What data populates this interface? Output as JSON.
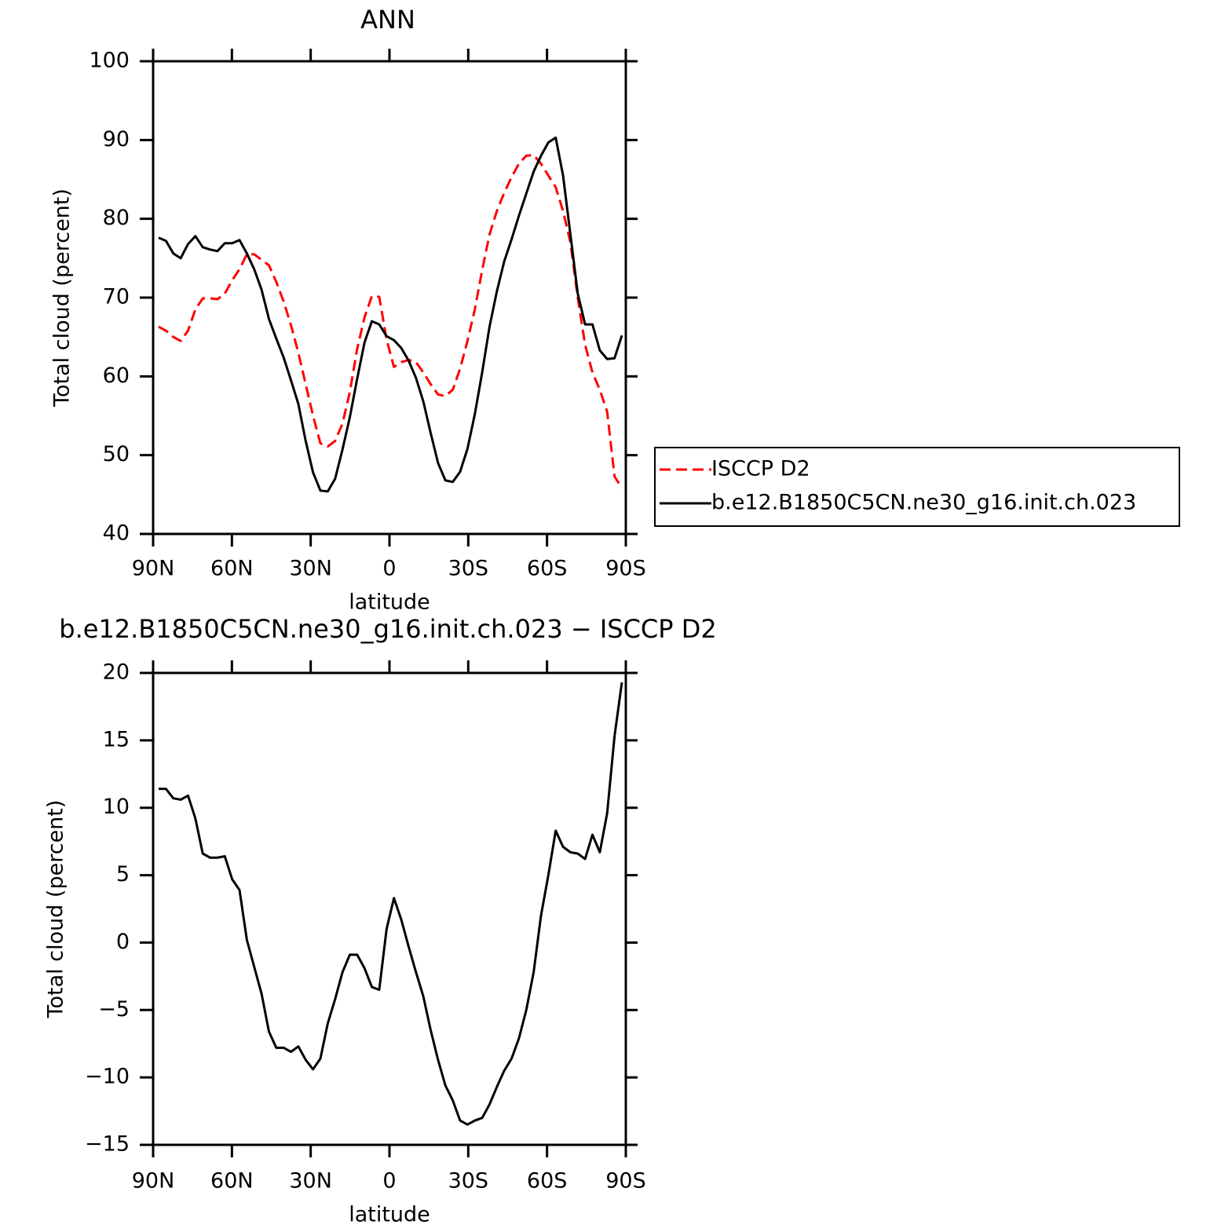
{
  "chart_data": [
    {
      "type": "line",
      "title": "ANN",
      "xlabel": "latitude",
      "ylabel": "Total cloud (percent)",
      "x": [
        87.9,
        85.1,
        82.3,
        79.5,
        76.7,
        73.9,
        71.1,
        68.3,
        65.5,
        62.7,
        59.9,
        57.1,
        54.3,
        51.5,
        48.7,
        45.9,
        43.1,
        40.3,
        37.5,
        34.7,
        31.9,
        29.1,
        26.3,
        23.5,
        20.7,
        17.9,
        15.1,
        12.3,
        9.5,
        6.7,
        3.9,
        1.1,
        -1.7,
        -4.5,
        -7.3,
        -10.1,
        -12.9,
        -15.7,
        -18.5,
        -21.3,
        -24.1,
        -26.9,
        -29.7,
        -32.5,
        -35.3,
        -38.1,
        -40.9,
        -43.7,
        -46.5,
        -49.3,
        -52.1,
        -54.9,
        -57.7,
        -60.5,
        -63.3,
        -66.1,
        -68.9,
        -71.7,
        -74.5,
        -77.3,
        -80.1,
        -82.9,
        -85.7,
        -88.5
      ],
      "series": [
        {
          "name": "ISCCP D2",
          "color": "#ff0000",
          "style": "dashed",
          "values": [
            66.3,
            65.8,
            65.0,
            64.5,
            65.8,
            68.5,
            69.9,
            69.9,
            69.8,
            70.5,
            72.2,
            73.6,
            75.5,
            75.5,
            74.8,
            74.1,
            72.0,
            69.5,
            66.5,
            63.0,
            59.0,
            55.0,
            51.5,
            51.1,
            51.8,
            54.0,
            58.0,
            63.5,
            67.5,
            70.2,
            70.1,
            64.7,
            61.2,
            61.8,
            62.1,
            61.8,
            60.5,
            59.0,
            57.7,
            57.5,
            58.3,
            61.0,
            64.5,
            68.5,
            73.5,
            78.0,
            81.0,
            83.3,
            85.3,
            87.0,
            88.0,
            88.1,
            87.0,
            85.5,
            84.0,
            81.0,
            77.0,
            70.0,
            64.0,
            60.5,
            58.3,
            55.5,
            47.3,
            45.8
          ]
        },
        {
          "name": "b.e12.B1850C5CN.ne30_g16.init.ch.023",
          "color": "#000000",
          "style": "solid",
          "values": [
            77.6,
            77.2,
            75.6,
            75.0,
            76.8,
            77.8,
            76.4,
            76.1,
            75.9,
            76.9,
            76.9,
            77.3,
            75.6,
            73.6,
            71.0,
            67.3,
            64.8,
            62.4,
            59.5,
            56.5,
            51.8,
            47.8,
            45.5,
            45.4,
            47.0,
            50.7,
            54.8,
            59.7,
            64.3,
            67.0,
            66.6,
            65.1,
            64.6,
            63.6,
            62.0,
            59.8,
            56.8,
            52.8,
            49.0,
            46.8,
            46.6,
            47.9,
            50.8,
            55.2,
            60.5,
            66.3,
            70.8,
            74.6,
            77.4,
            80.4,
            83.2,
            86.0,
            88.0,
            89.7,
            90.3,
            85.5,
            78.0,
            70.5,
            66.6,
            66.6,
            63.3,
            62.2,
            62.3,
            65.2
          ]
        }
      ],
      "xlim": [
        90,
        -90
      ],
      "ylim": [
        40,
        100
      ],
      "xticks": [
        {
          "value": 90,
          "label": "90N"
        },
        {
          "value": 60,
          "label": "60N"
        },
        {
          "value": 30,
          "label": "30N"
        },
        0,
        {
          "value": -30,
          "label": "30S"
        },
        {
          "value": -60,
          "label": "60S"
        },
        {
          "value": -90,
          "label": "90S"
        }
      ],
      "yticks": [
        40,
        50,
        60,
        70,
        80,
        90,
        100
      ],
      "legend": "outside-right"
    },
    {
      "type": "line",
      "title": "b.e12.B1850C5CN.ne30_g16.init.ch.023 − ISCCP D2",
      "xlabel": "latitude",
      "ylabel": "Total cloud (percent)",
      "x": [
        87.9,
        85.1,
        82.3,
        79.5,
        76.7,
        73.9,
        71.1,
        68.3,
        65.5,
        62.7,
        59.9,
        57.1,
        54.3,
        51.5,
        48.7,
        45.9,
        43.1,
        40.3,
        37.5,
        34.7,
        31.9,
        29.1,
        26.3,
        23.5,
        20.7,
        17.9,
        15.1,
        12.3,
        9.5,
        6.7,
        3.9,
        1.1,
        -1.7,
        -4.5,
        -7.3,
        -10.1,
        -12.9,
        -15.7,
        -18.5,
        -21.3,
        -24.1,
        -26.9,
        -29.7,
        -32.5,
        -35.3,
        -38.1,
        -40.9,
        -43.7,
        -46.5,
        -49.3,
        -52.1,
        -54.9,
        -57.7,
        -60.5,
        -63.3,
        -66.1,
        -68.9,
        -71.7,
        -74.5,
        -77.3,
        -80.1,
        -82.9,
        -85.7,
        -88.5
      ],
      "series": [
        {
          "color": "#000000",
          "style": "solid",
          "values": [
            11.4,
            11.4,
            10.7,
            10.6,
            10.9,
            9.2,
            6.6,
            6.3,
            6.3,
            6.4,
            4.7,
            3.9,
            0.2,
            -1.8,
            -3.8,
            -6.6,
            -7.8,
            -7.8,
            -8.1,
            -7.7,
            -8.7,
            -9.4,
            -8.6,
            -6.0,
            -4.2,
            -2.2,
            -0.9,
            -0.9,
            -1.9,
            -3.3,
            -3.5,
            1.0,
            3.3,
            1.7,
            -0.3,
            -2.2,
            -4.0,
            -6.5,
            -8.7,
            -10.6,
            -11.7,
            -13.2,
            -13.5,
            -13.2,
            -13.0,
            -12.0,
            -10.7,
            -9.5,
            -8.6,
            -7.1,
            -5.0,
            -2.2,
            2.0,
            5.0,
            8.3,
            7.1,
            6.7,
            6.6,
            6.2,
            8.0,
            6.7,
            9.6,
            15.3,
            19.3
          ]
        }
      ],
      "xlim": [
        90,
        -90
      ],
      "ylim": [
        -15,
        20
      ],
      "xticks": [
        {
          "value": 90,
          "label": "90N"
        },
        {
          "value": 60,
          "label": "60N"
        },
        {
          "value": 30,
          "label": "30N"
        },
        0,
        {
          "value": -30,
          "label": "30S"
        },
        {
          "value": -60,
          "label": "60S"
        },
        {
          "value": -90,
          "label": "90S"
        }
      ],
      "yticks": [
        {
          "value": -15,
          "label": "−15"
        },
        {
          "value": -10,
          "label": "−10"
        },
        {
          "value": -5,
          "label": "−5"
        },
        0,
        5,
        10,
        15,
        20
      ],
      "legend": "none"
    }
  ]
}
